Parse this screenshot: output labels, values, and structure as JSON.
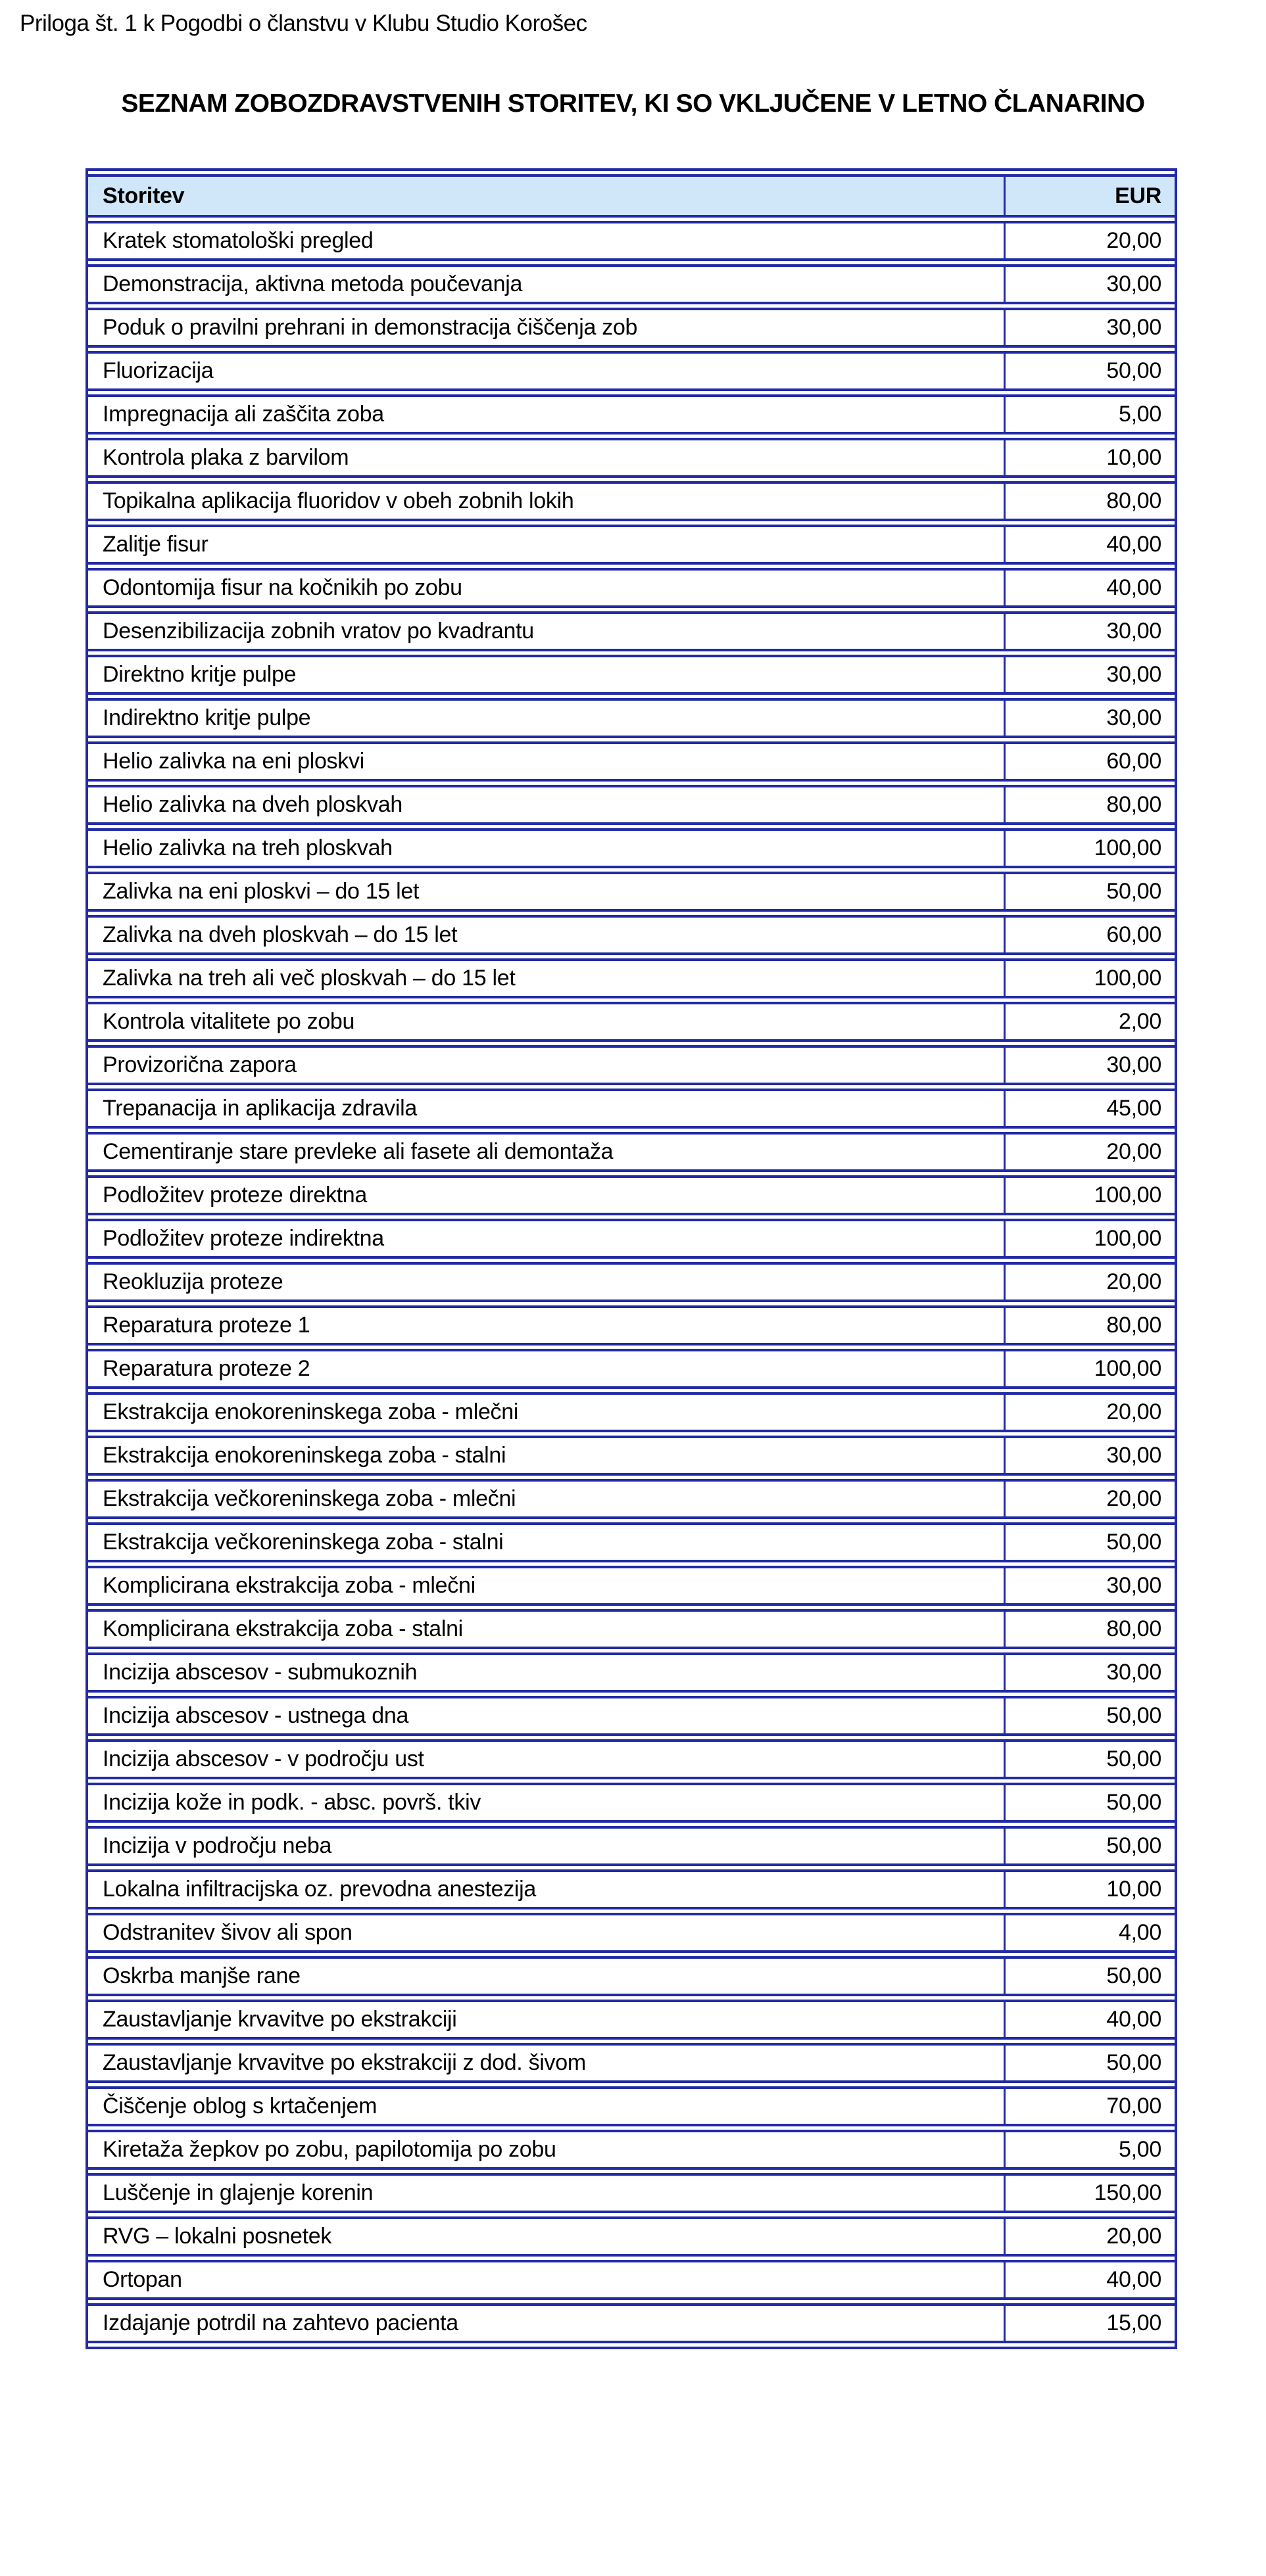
{
  "page": {
    "annotation": "Priloga št. 1 k Pogodbi o članstvu v Klubu Studio Korošec",
    "title": "SEZNAM ZOBOZDRAVSTVENIH STORITEV, KI SO VKLJUČENE V LETNO ČLANARINO"
  },
  "colors": {
    "table_border": "#222ba5",
    "header_background": "#cfe7f9",
    "text": "#000000",
    "page_background": "#ffffff"
  },
  "table": {
    "columns": [
      "Storitev",
      "EUR"
    ],
    "rows": [
      [
        "Kratek stomatološki pregled",
        "20,00"
      ],
      [
        "Demonstracija, aktivna metoda poučevanja",
        "30,00"
      ],
      [
        "Poduk o pravilni prehrani in demonstracija čiščenja zob",
        "30,00"
      ],
      [
        "Fluorizacija",
        "50,00"
      ],
      [
        "Impregnacija ali zaščita zoba",
        "5,00"
      ],
      [
        "Kontrola plaka z barvilom",
        "10,00"
      ],
      [
        "Topikalna aplikacija fluoridov v obeh zobnih lokih",
        "80,00"
      ],
      [
        "Zalitje fisur",
        "40,00"
      ],
      [
        "Odontomija fisur na kočnikih po zobu",
        "40,00"
      ],
      [
        "Desenzibilizacija zobnih vratov po kvadrantu",
        "30,00"
      ],
      [
        "Direktno kritje pulpe",
        "30,00"
      ],
      [
        "Indirektno kritje pulpe",
        "30,00"
      ],
      [
        "Helio zalivka na eni ploskvi",
        "60,00"
      ],
      [
        "Helio zalivka na dveh ploskvah",
        "80,00"
      ],
      [
        "Helio zalivka na treh ploskvah",
        "100,00"
      ],
      [
        "Zalivka na eni ploskvi – do 15 let",
        "50,00"
      ],
      [
        "Zalivka na dveh ploskvah – do 15 let",
        "60,00"
      ],
      [
        "Zalivka na treh ali več ploskvah – do 15 let",
        "100,00"
      ],
      [
        "Kontrola vitalitete po zobu",
        "2,00"
      ],
      [
        "Provizorična zapora",
        "30,00"
      ],
      [
        "Trepanacija in aplikacija zdravila",
        "45,00"
      ],
      [
        "Cementiranje stare prevleke ali fasete ali demontaža",
        "20,00"
      ],
      [
        "Podložitev proteze direktna",
        "100,00"
      ],
      [
        "Podložitev proteze indirektna",
        "100,00"
      ],
      [
        "Reokluzija proteze",
        "20,00"
      ],
      [
        "Reparatura proteze 1",
        "80,00"
      ],
      [
        "Reparatura proteze 2",
        "100,00"
      ],
      [
        "Ekstrakcija enokoreninskega zoba - mlečni",
        "20,00"
      ],
      [
        "Ekstrakcija enokoreninskega zoba - stalni",
        "30,00"
      ],
      [
        "Ekstrakcija večkoreninskega zoba - mlečni",
        "20,00"
      ],
      [
        "Ekstrakcija večkoreninskega zoba - stalni",
        "50,00"
      ],
      [
        "Komplicirana ekstrakcija zoba - mlečni",
        "30,00"
      ],
      [
        "Komplicirana ekstrakcija zoba - stalni",
        "80,00"
      ],
      [
        "Incizija abscesov - submukoznih",
        "30,00"
      ],
      [
        "Incizija abscesov - ustnega dna",
        "50,00"
      ],
      [
        "Incizija abscesov - v področju ust",
        "50,00"
      ],
      [
        "Incizija kože in podk. - absc. površ. tkiv",
        "50,00"
      ],
      [
        "Incizija v področju neba",
        "50,00"
      ],
      [
        "Lokalna infiltracijska oz. prevodna anestezija",
        "10,00"
      ],
      [
        "Odstranitev šivov ali spon",
        "4,00"
      ],
      [
        "Oskrba manjše rane",
        "50,00"
      ],
      [
        "Zaustavljanje krvavitve po ekstrakciji",
        "40,00"
      ],
      [
        "Zaustavljanje krvavitve po ekstrakciji z dod. šivom",
        "50,00"
      ],
      [
        "Čiščenje oblog s krtačenjem",
        "70,00"
      ],
      [
        "Kiretaža žepkov po zobu, papilotomija po zobu",
        "5,00"
      ],
      [
        "Luščenje in glajenje korenin",
        "150,00"
      ],
      [
        "RVG – lokalni posnetek",
        "20,00"
      ],
      [
        "Ortopan",
        "40,00"
      ],
      [
        "Izdajanje potrdil na zahtevo pacienta",
        "15,00"
      ]
    ]
  }
}
